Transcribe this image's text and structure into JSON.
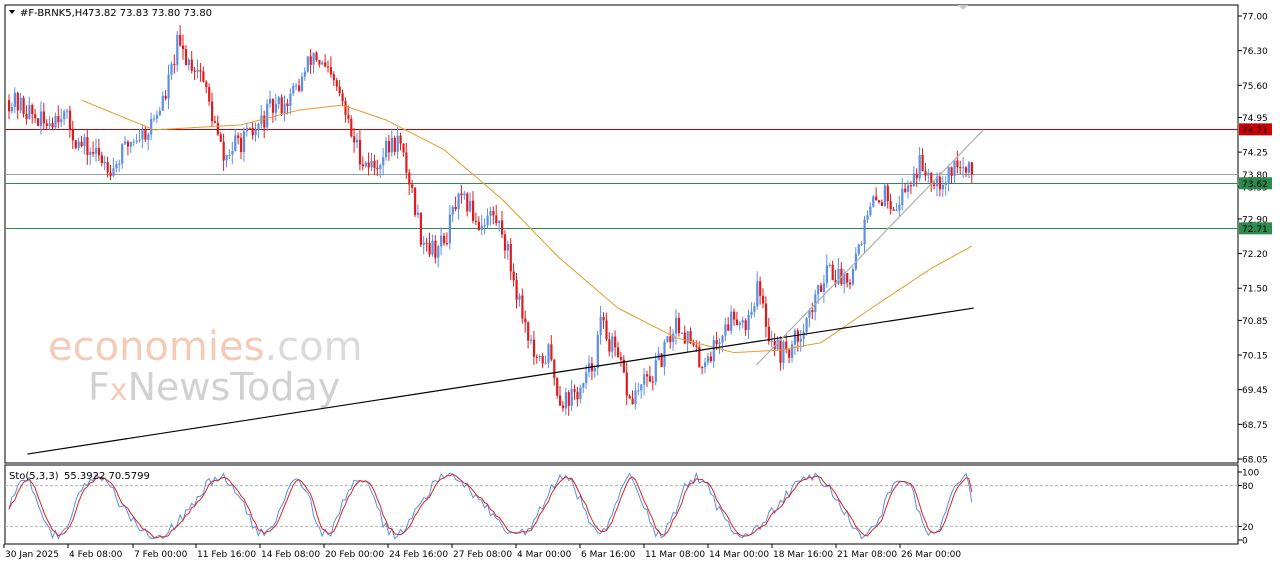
{
  "header": {
    "symbol": "#F-BRNK5,H4",
    "ohlc": "73.82 73.83 73.80 73.80"
  },
  "stoch_header": {
    "label": "Sto(5,3,3)",
    "values": "55.3922 70.5799"
  },
  "watermark": {
    "brand_main": "economies",
    "brand_tld": ".com",
    "brand_sub_part1": "F",
    "brand_sub_part2": "x",
    "brand_sub_part3": "NewsToday",
    "color": "#f3c9b4",
    "color_sub": "#c8c8c8"
  },
  "colors": {
    "bull": "#5b8ee6",
    "bear": "#e11b1b",
    "ma": "#e89a2a",
    "stoch_main": "#5b8ee6",
    "stoch_signal": "#d8261f",
    "resistance": "#cc0000",
    "support": "#2d8a4e",
    "current": "#9aa1a6",
    "trend": "#000000",
    "trend_light": "#b0b0b0"
  },
  "price_axis": {
    "ticks": [
      "77.00",
      "76.30",
      "75.60",
      "74.95",
      "74.25",
      "73.55",
      "72.90",
      "72.20",
      "71.50",
      "70.85",
      "70.15",
      "69.45",
      "68.75",
      "68.05"
    ]
  },
  "level_labels": {
    "resistance": "74.71",
    "current": "73.80",
    "support1": "73.62",
    "support2": "72.71"
  },
  "stoch_axis": {
    "ticks": [
      "100",
      "80",
      "20",
      "0"
    ]
  },
  "time_axis": {
    "labels": [
      "30 Jan 2025",
      "4 Feb 08:00",
      "7 Feb 00:00",
      "11 Feb 16:00",
      "14 Feb 08:00",
      "20 Feb 00:00",
      "24 Feb 16:00",
      "27 Feb 08:00",
      "4 Mar 00:00",
      "6 Mar 16:00",
      "11 Mar 08:00",
      "14 Mar 00:00",
      "18 Mar 16:00",
      "21 Mar 08:00",
      "26 Mar 00:00"
    ]
  },
  "chart_data": {
    "type": "candlestick",
    "symbol": "#F-BRNK5",
    "timeframe": "H4",
    "ylim": [
      68.05,
      77.05
    ],
    "price_levels": {
      "resistance": 74.71,
      "current": 73.8,
      "support1": 73.62,
      "support2": 72.71
    },
    "trendlines": [
      {
        "style": "solid-black",
        "from": {
          "bar": 0.02,
          "price": 68.15
        },
        "to": {
          "bar": 1.0,
          "price": 71.1
        }
      },
      {
        "style": "grey",
        "from": {
          "bar": 0.775,
          "price": 69.95
        },
        "to": {
          "bar": 1.01,
          "price": 74.7
        }
      }
    ],
    "price_path": [
      [
        0,
        75.3
      ],
      [
        6,
        75.1
      ],
      [
        12,
        74.8
      ],
      [
        18,
        75.1
      ],
      [
        24,
        74.4
      ],
      [
        30,
        74.2
      ],
      [
        36,
        73.95
      ],
      [
        42,
        74.5
      ],
      [
        48,
        74.7
      ],
      [
        54,
        75.4
      ],
      [
        58,
        76.4
      ],
      [
        62,
        76.1
      ],
      [
        66,
        75.9
      ],
      [
        70,
        75.0
      ],
      [
        74,
        74.1
      ],
      [
        78,
        74.4
      ],
      [
        84,
        74.6
      ],
      [
        90,
        75.1
      ],
      [
        96,
        75.3
      ],
      [
        100,
        75.6
      ],
      [
        105,
        76.25
      ],
      [
        110,
        75.8
      ],
      [
        114,
        75.4
      ],
      [
        118,
        74.6
      ],
      [
        122,
        74.1
      ],
      [
        126,
        73.95
      ],
      [
        130,
        74.3
      ],
      [
        134,
        74.5
      ],
      [
        138,
        73.7
      ],
      [
        142,
        72.6
      ],
      [
        146,
        72.3
      ],
      [
        150,
        72.4
      ],
      [
        154,
        73.2
      ],
      [
        158,
        73.2
      ],
      [
        162,
        72.8
      ],
      [
        166,
        73.0
      ],
      [
        170,
        72.7
      ],
      [
        174,
        71.7
      ],
      [
        178,
        70.8
      ],
      [
        182,
        69.9
      ],
      [
        186,
        70.2
      ],
      [
        190,
        69.25
      ],
      [
        194,
        69.3
      ],
      [
        198,
        69.5
      ],
      [
        202,
        70.1
      ],
      [
        204,
        70.8
      ],
      [
        208,
        70.3
      ],
      [
        212,
        69.7
      ],
      [
        214,
        69.2
      ],
      [
        218,
        69.5
      ],
      [
        222,
        69.75
      ],
      [
        226,
        70.2
      ],
      [
        230,
        70.85
      ],
      [
        234,
        70.5
      ],
      [
        238,
        70.0
      ],
      [
        242,
        70.2
      ],
      [
        246,
        70.6
      ],
      [
        250,
        71.0
      ],
      [
        254,
        70.8
      ],
      [
        258,
        71.5
      ],
      [
        262,
        70.6
      ],
      [
        266,
        70.2
      ],
      [
        270,
        70.3
      ],
      [
        274,
        70.8
      ],
      [
        278,
        71.2
      ],
      [
        282,
        72.0
      ],
      [
        286,
        71.7
      ],
      [
        290,
        71.8
      ],
      [
        294,
        72.6
      ],
      [
        298,
        73.2
      ],
      [
        302,
        73.4
      ],
      [
        306,
        73.2
      ],
      [
        310,
        73.6
      ],
      [
        314,
        74.0
      ],
      [
        318,
        73.8
      ],
      [
        322,
        73.7
      ],
      [
        326,
        74.0
      ],
      [
        330,
        73.85
      ],
      [
        332,
        73.8
      ]
    ],
    "ma_path": [
      [
        25,
        75.3
      ],
      [
        50,
        74.7
      ],
      [
        80,
        74.8
      ],
      [
        100,
        75.1
      ],
      [
        115,
        75.2
      ],
      [
        130,
        74.9
      ],
      [
        150,
        74.3
      ],
      [
        170,
        73.3
      ],
      [
        190,
        72.1
      ],
      [
        210,
        71.1
      ],
      [
        230,
        70.5
      ],
      [
        250,
        70.2
      ],
      [
        266,
        70.25
      ],
      [
        280,
        70.4
      ],
      [
        300,
        71.2
      ],
      [
        318,
        71.9
      ],
      [
        332,
        72.35
      ]
    ],
    "stochastic": {
      "name": "Sto(5,3,3)",
      "main": 55.3922,
      "signal": 70.5799,
      "levels": [
        80,
        20
      ],
      "ylim": [
        0,
        100
      ]
    }
  }
}
